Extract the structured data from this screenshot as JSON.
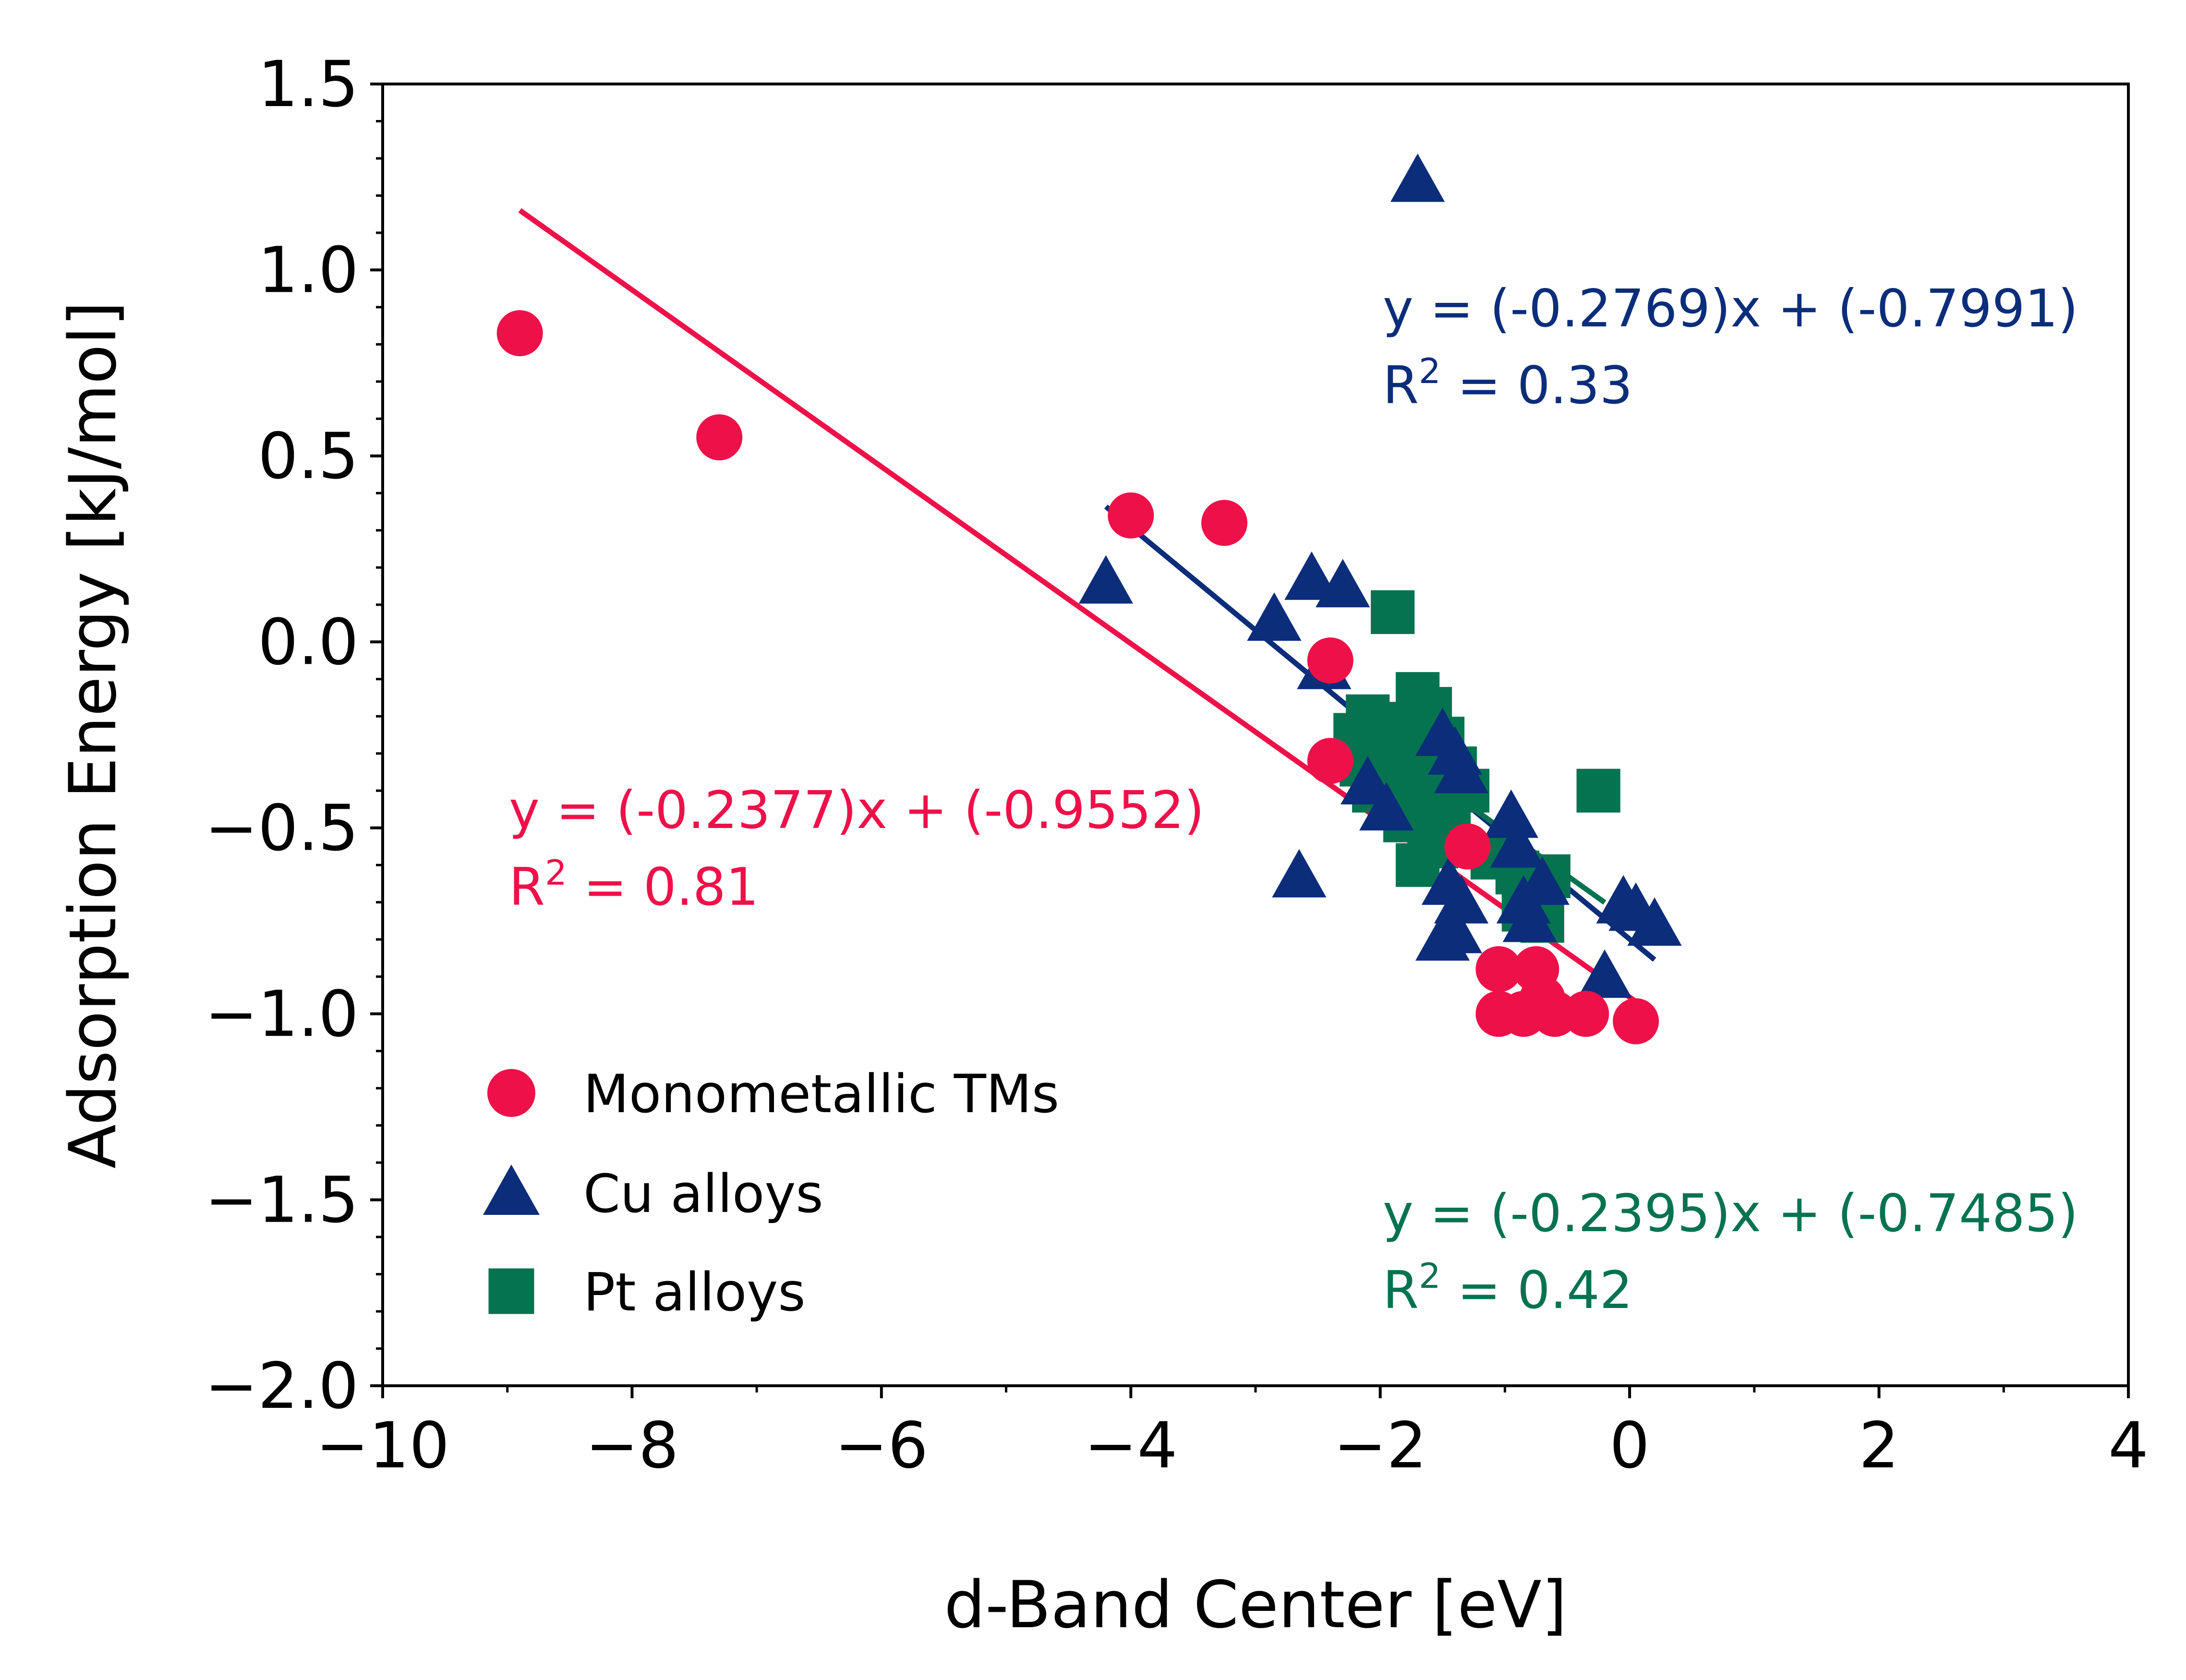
{
  "chart_data": {
    "type": "scatter",
    "xlabel": "d-Band Center [eV]",
    "ylabel": "Adsorption Energy [kJ/mol]",
    "xlim": [
      -10,
      4
    ],
    "ylim": [
      -2.0,
      1.5
    ],
    "xticks": [
      {
        "value": -10,
        "label": "−10"
      },
      {
        "value": -8,
        "label": "−8"
      },
      {
        "value": -6,
        "label": "−6"
      },
      {
        "value": -4,
        "label": "−4"
      },
      {
        "value": -2,
        "label": "−2"
      },
      {
        "value": 0,
        "label": "0"
      },
      {
        "value": 2,
        "label": "2"
      },
      {
        "value": 4,
        "label": "4"
      }
    ],
    "yticks": [
      {
        "value": 1.5,
        "label": "1.5"
      },
      {
        "value": 1.0,
        "label": "1.0"
      },
      {
        "value": 0.5,
        "label": "0.5"
      },
      {
        "value": 0.0,
        "label": "0.0"
      },
      {
        "value": -0.5,
        "label": "−0.5"
      },
      {
        "value": -1.0,
        "label": "−1.0"
      },
      {
        "value": -1.5,
        "label": "−1.5"
      },
      {
        "value": -2.0,
        "label": "−2.0"
      }
    ],
    "grid": false,
    "legend_position": "bottom-left",
    "series": [
      {
        "name": "Monometallic TMs",
        "marker": "circle",
        "color": "#ee1149",
        "points": [
          [
            -8.9,
            0.83
          ],
          [
            -7.3,
            0.55
          ],
          [
            -4.0,
            0.34
          ],
          [
            -3.25,
            0.32
          ],
          [
            -2.4,
            -0.05
          ],
          [
            -2.4,
            -0.32
          ],
          [
            -1.3,
            -0.55
          ],
          [
            -1.05,
            -0.88
          ],
          [
            -1.05,
            -1.0
          ],
          [
            -0.85,
            -1.0
          ],
          [
            -0.75,
            -0.88
          ],
          [
            -0.7,
            -0.96
          ],
          [
            -0.6,
            -1.0
          ],
          [
            -0.35,
            -1.0
          ],
          [
            0.05,
            -1.02
          ]
        ],
        "fit": {
          "slope": -0.2377,
          "intercept": -0.9552,
          "x_range": [
            -8.9,
            0.05
          ]
        },
        "equation": "y = (-0.2377)x + (-0.9552)",
        "r2_label": "R",
        "r2_sup": "2",
        "r2_value": " = 0.81"
      },
      {
        "name": "Cu alloys",
        "marker": "triangle",
        "color": "#0b2d7a",
        "points": [
          [
            -1.7,
            1.24
          ],
          [
            -4.2,
            0.16
          ],
          [
            -2.55,
            0.17
          ],
          [
            -2.3,
            0.15
          ],
          [
            -2.85,
            0.06
          ],
          [
            -2.45,
            -0.07
          ],
          [
            -2.1,
            -0.38
          ],
          [
            -1.95,
            -0.45
          ],
          [
            -1.5,
            -0.25
          ],
          [
            -1.4,
            -0.3
          ],
          [
            -1.35,
            -0.35
          ],
          [
            -2.65,
            -0.63
          ],
          [
            -1.45,
            -0.65
          ],
          [
            -1.35,
            -0.7
          ],
          [
            -1.5,
            -0.8
          ],
          [
            -1.4,
            -0.78
          ],
          [
            -0.95,
            -0.47
          ],
          [
            -0.9,
            -0.55
          ],
          [
            -0.85,
            -0.7
          ],
          [
            -0.8,
            -0.75
          ],
          [
            -0.05,
            -0.7
          ],
          [
            0.05,
            -0.72
          ],
          [
            0.2,
            -0.76
          ],
          [
            -0.2,
            -0.9
          ],
          [
            -0.7,
            -0.65
          ]
        ],
        "fit": {
          "slope": -0.2769,
          "intercept": -0.7991,
          "x_range": [
            -4.2,
            0.2
          ]
        },
        "equation": "y = (-0.2769)x + (-0.7991)",
        "r2_label": "R",
        "r2_sup": "2",
        "r2_value": " = 0.33"
      },
      {
        "name": "Pt alloys",
        "marker": "square",
        "color": "#067350",
        "points": [
          [
            -1.9,
            0.08
          ],
          [
            -1.7,
            -0.14
          ],
          [
            -1.6,
            -0.18
          ],
          [
            -2.1,
            -0.2
          ],
          [
            -2.2,
            -0.25
          ],
          [
            -2.0,
            -0.28
          ],
          [
            -1.8,
            -0.22
          ],
          [
            -1.5,
            -0.26
          ],
          [
            -2.15,
            -0.33
          ],
          [
            -1.95,
            -0.36
          ],
          [
            -1.75,
            -0.32
          ],
          [
            -1.55,
            -0.31
          ],
          [
            -1.4,
            -0.34
          ],
          [
            -2.05,
            -0.4
          ],
          [
            -1.85,
            -0.42
          ],
          [
            -1.65,
            -0.38
          ],
          [
            -1.5,
            -0.43
          ],
          [
            -1.3,
            -0.4
          ],
          [
            -1.8,
            -0.48
          ],
          [
            -1.6,
            -0.5
          ],
          [
            -1.45,
            -0.47
          ],
          [
            -1.7,
            -0.6
          ],
          [
            -1.55,
            -0.55
          ],
          [
            -1.1,
            -0.58
          ],
          [
            -0.9,
            -0.62
          ],
          [
            -0.75,
            -0.67
          ],
          [
            -0.65,
            -0.63
          ],
          [
            -0.85,
            -0.72
          ],
          [
            -0.7,
            -0.75
          ],
          [
            -0.25,
            -0.4
          ]
        ],
        "fit": {
          "slope": -0.2395,
          "intercept": -0.7485,
          "x_range": [
            -2.2,
            -0.2
          ]
        },
        "equation": "y = (-0.2395)x + (-0.7485)",
        "r2_label": "R",
        "r2_sup": "2",
        "r2_value": " = 0.42"
      }
    ]
  }
}
